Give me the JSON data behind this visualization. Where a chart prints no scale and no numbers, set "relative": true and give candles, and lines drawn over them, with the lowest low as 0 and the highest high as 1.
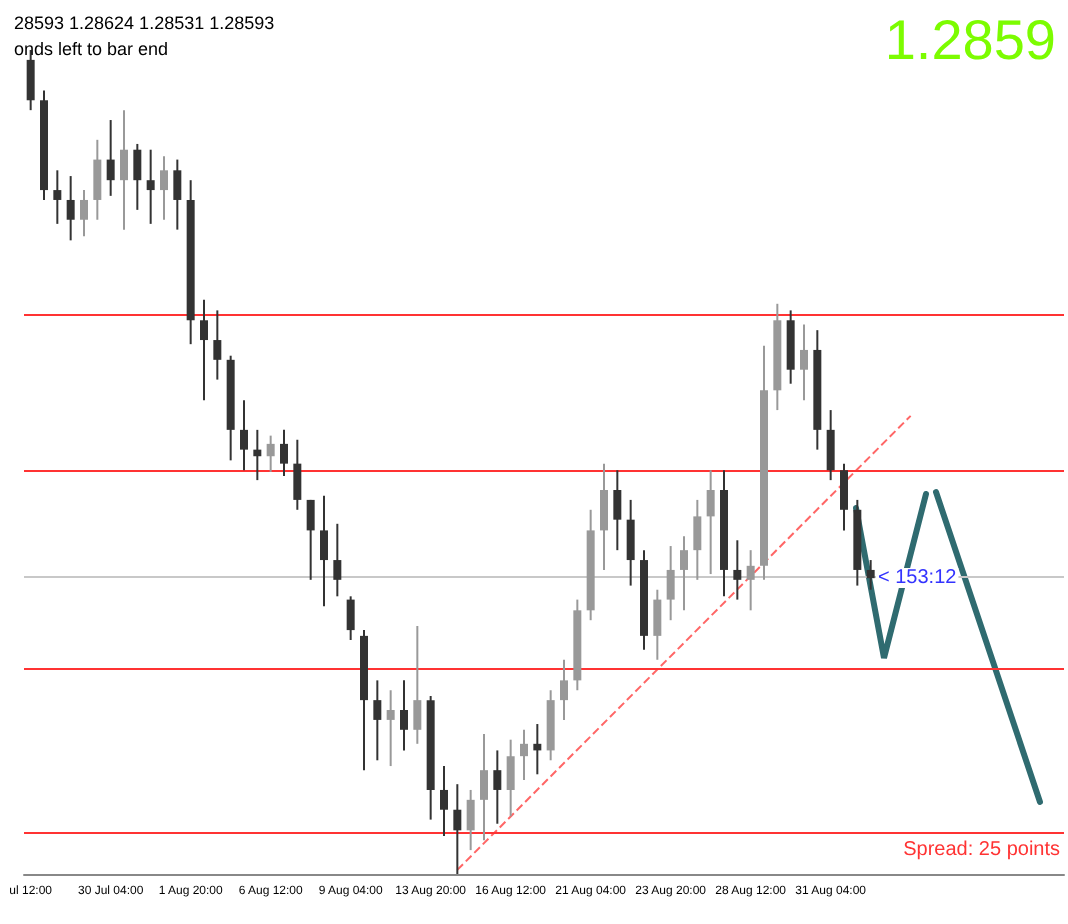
{
  "chart_data": {
    "type": "candlestick",
    "title": "28593 1.28624 1.28531 1.28593",
    "subtitle": "onds left to bar end",
    "relative": true,
    "tick_labels": "x",
    "grid": false,
    "annotations": [
      "1.2859",
      "< 153:12",
      "Spread: 25 points"
    ],
    "categories": [
      "ul 12:00",
      null,
      null,
      null,
      null,
      null,
      "30 Jul 04:00",
      null,
      null,
      null,
      null,
      null,
      "1 Aug 20:00",
      null,
      null,
      null,
      null,
      null,
      "6 Aug 12:00",
      null,
      null,
      null,
      null,
      null,
      "9 Aug 04:00",
      null,
      null,
      null,
      null,
      null,
      "13 Aug 20:00",
      null,
      null,
      null,
      null,
      null,
      "16 Aug 12:00",
      null,
      null,
      null,
      null,
      null,
      "21 Aug 04:00",
      null,
      null,
      null,
      null,
      null,
      "23 Aug 20:00",
      null,
      null,
      null,
      null,
      null,
      "28 Aug 12:00",
      null,
      null,
      null,
      null,
      null,
      "31 Aug 04:00",
      null,
      null,
      null,
      null,
      null,
      null,
      null,
      null,
      null,
      null,
      null,
      null,
      null,
      null,
      null,
      null,
      null
    ],
    "ohlc": [
      [
        0.988,
        1.0,
        0.927,
        0.939
      ],
      [
        0.939,
        0.951,
        0.818,
        0.83
      ],
      [
        0.83,
        0.854,
        0.789,
        0.818
      ],
      [
        0.818,
        0.847,
        0.769,
        0.794
      ],
      [
        0.794,
        0.83,
        0.774,
        0.818
      ],
      [
        0.818,
        0.891,
        0.794,
        0.867
      ],
      [
        0.867,
        0.915,
        0.823,
        0.842
      ],
      [
        0.842,
        0.927,
        0.782,
        0.879
      ],
      [
        0.879,
        0.886,
        0.806,
        0.842
      ],
      [
        0.842,
        0.879,
        0.789,
        0.83
      ],
      [
        0.83,
        0.871,
        0.794,
        0.854
      ],
      [
        0.854,
        0.867,
        0.782,
        0.818
      ],
      [
        0.818,
        0.842,
        0.643,
        0.672
      ],
      [
        0.672,
        0.697,
        0.575,
        0.648
      ],
      [
        0.648,
        0.684,
        0.6,
        0.624
      ],
      [
        0.624,
        0.629,
        0.502,
        0.539
      ],
      [
        0.539,
        0.575,
        0.49,
        0.515
      ],
      [
        0.515,
        0.539,
        0.478,
        0.507
      ],
      [
        0.507,
        0.532,
        0.488,
        0.522
      ],
      [
        0.522,
        0.539,
        0.483,
        0.498
      ],
      [
        0.498,
        0.527,
        0.442,
        0.454
      ],
      [
        0.454,
        0.454,
        0.357,
        0.417
      ],
      [
        0.417,
        0.459,
        0.325,
        0.381
      ],
      [
        0.381,
        0.425,
        0.337,
        0.357
      ],
      [
        0.333,
        0.337,
        0.284,
        0.296
      ],
      [
        0.289,
        0.296,
        0.126,
        0.211
      ],
      [
        0.211,
        0.235,
        0.138,
        0.187
      ],
      [
        0.187,
        0.223,
        0.131,
        0.199
      ],
      [
        0.199,
        0.235,
        0.15,
        0.175
      ],
      [
        0.175,
        0.301,
        0.158,
        0.211
      ],
      [
        0.211,
        0.216,
        0.066,
        0.102
      ],
      [
        0.102,
        0.131,
        0.046,
        0.078
      ],
      [
        0.078,
        0.109,
        0,
        0.053
      ],
      [
        0.053,
        0.102,
        0.029,
        0.09
      ],
      [
        0.09,
        0.17,
        0.041,
        0.126
      ],
      [
        0.126,
        0.15,
        0.061,
        0.102
      ],
      [
        0.102,
        0.163,
        0.07,
        0.143
      ],
      [
        0.143,
        0.175,
        0.114,
        0.158
      ],
      [
        0.158,
        0.182,
        0.121,
        0.15
      ],
      [
        0.15,
        0.223,
        0.138,
        0.211
      ],
      [
        0.211,
        0.26,
        0.187,
        0.235
      ],
      [
        0.235,
        0.333,
        0.223,
        0.32
      ],
      [
        0.32,
        0.442,
        0.308,
        0.417
      ],
      [
        0.417,
        0.498,
        0.369,
        0.466
      ],
      [
        0.466,
        0.49,
        0.393,
        0.43
      ],
      [
        0.43,
        0.454,
        0.35,
        0.381
      ],
      [
        0.381,
        0.393,
        0.272,
        0.289
      ],
      [
        0.289,
        0.345,
        0.26,
        0.333
      ],
      [
        0.333,
        0.398,
        0.308,
        0.369
      ],
      [
        0.369,
        0.41,
        0.32,
        0.393
      ],
      [
        0.393,
        0.454,
        0.357,
        0.434
      ],
      [
        0.434,
        0.49,
        0.364,
        0.466
      ],
      [
        0.466,
        0.49,
        0.337,
        0.369
      ],
      [
        0.369,
        0.405,
        0.333,
        0.357
      ],
      [
        0.357,
        0.393,
        0.32,
        0.374
      ],
      [
        0.374,
        0.641,
        0.357,
        0.587
      ],
      [
        0.587,
        0.692,
        0.563,
        0.672
      ],
      [
        0.672,
        0.684,
        0.595,
        0.612
      ],
      [
        0.612,
        0.667,
        0.575,
        0.636
      ],
      [
        0.636,
        0.66,
        0.515,
        0.539
      ],
      [
        0.539,
        0.563,
        0.478,
        0.49
      ],
      [
        0.49,
        0.498,
        0.417,
        0.442
      ],
      [
        0.442,
        0.454,
        0.35,
        0.369
      ],
      [
        0.369,
        0.381,
        0.345,
        0.359
      ],
      null,
      null,
      null,
      null,
      null,
      null,
      null,
      null,
      null,
      null,
      null,
      null,
      null,
      null
    ],
    "series": [
      {
        "type": "line",
        "color": "#ff6666",
        "line_style": "dashed",
        "values": [
          null,
          null,
          null,
          null,
          null,
          null,
          null,
          null,
          null,
          null,
          null,
          null,
          null,
          null,
          null,
          null,
          null,
          null,
          null,
          null,
          null,
          null,
          null,
          null,
          null,
          null,
          null,
          null,
          null,
          null,
          null,
          null,
          0.005,
          null,
          null,
          null,
          null,
          null,
          null,
          null,
          null,
          null,
          null,
          null,
          null,
          null,
          null,
          null,
          null,
          null,
          null,
          null,
          null,
          null,
          null,
          null,
          null,
          null,
          null,
          null,
          null,
          null,
          null,
          null,
          null,
          null,
          0.556,
          null,
          null,
          null,
          null,
          null,
          null,
          null,
          null,
          null,
          null,
          null
        ]
      }
    ],
    "ref_lines": [
      {
        "axis": "y",
        "value": 0.68,
        "color": "#ff3333"
      },
      {
        "axis": "y",
        "value": 0.49,
        "color": "#ff3333"
      },
      {
        "axis": "y",
        "value": 0.359,
        "color": "#c8c8c8"
      },
      {
        "axis": "y",
        "value": 0.25,
        "color": "#ff3333"
      },
      {
        "axis": "y",
        "value": 0.051,
        "color": "#ff3333"
      }
    ]
  }
}
